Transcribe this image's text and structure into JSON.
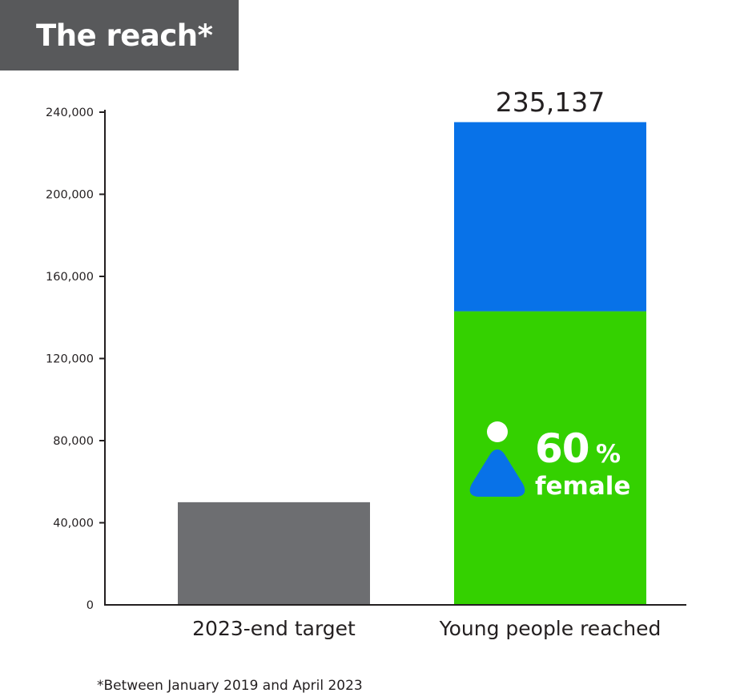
{
  "title": "The reach*",
  "footnote": "*Between January 2019 and April 2023",
  "colors": {
    "title_bg": "#58595b",
    "axis": "#231f20",
    "target_bar": "#6d6e71",
    "female_segment": "#34d100",
    "male_segment": "#0872e8",
    "icon_white": "#ffffff"
  },
  "chart_data": {
    "type": "bar",
    "stacked": true,
    "categories": [
      "2023-end target",
      "Young people reached"
    ],
    "ylim": [
      0,
      240000
    ],
    "yticks": [
      0,
      40000,
      80000,
      120000,
      160000,
      200000,
      240000
    ],
    "ytick_labels": [
      "0",
      "40,000",
      "80,000",
      "120,000",
      "160,000",
      "200,000",
      "240,000"
    ],
    "series": [
      {
        "values": [
          50000,
          143000
        ],
        "color_key": "target_or_female"
      },
      {
        "values": [
          0,
          92137
        ]
      }
    ],
    "totals": [
      50000,
      235137
    ],
    "data_labels": [
      {
        "category": "Young people reached",
        "text": "235,137"
      }
    ],
    "annotation": {
      "category": "Young people reached",
      "percent": "60",
      "percent_sign": "%",
      "label": "female",
      "icon": "female-person-icon"
    }
  }
}
